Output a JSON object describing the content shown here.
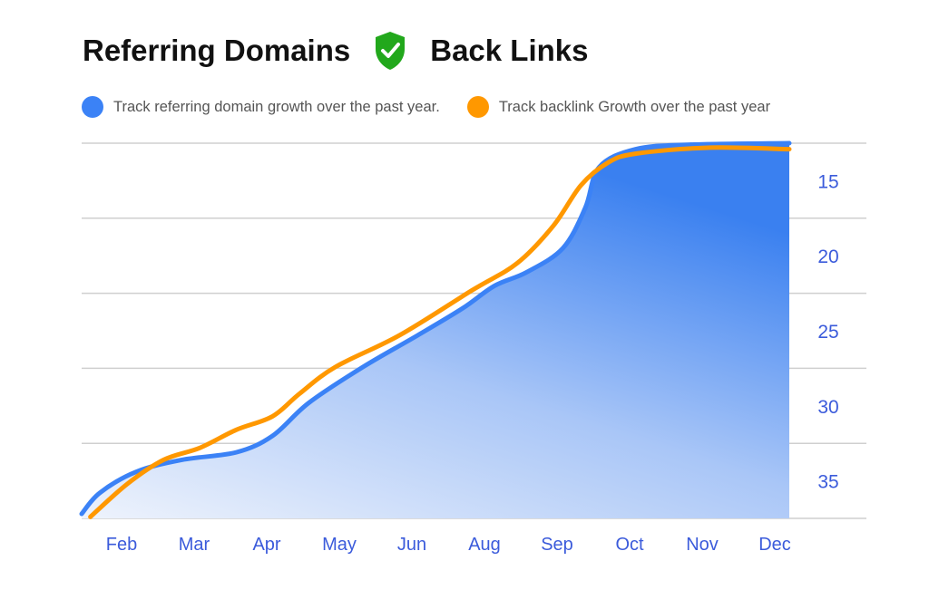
{
  "chart_data": {
    "type": "line",
    "title_left": "Referring Domains",
    "title_right": "Back Links",
    "title_icon": "shield-check-icon",
    "categories": [
      "Feb",
      "Mar",
      "Apr",
      "May",
      "Jun",
      "Aug",
      "Sep",
      "Oct",
      "Nov",
      "Dec"
    ],
    "y_ticks": [
      "15",
      "20",
      "25",
      "30",
      "35"
    ],
    "y_tick_values": [
      15,
      20,
      25,
      30,
      35
    ],
    "ylim": [
      37.5,
      12.5
    ],
    "xlim": [
      -0.55,
      9.2
    ],
    "grid": true,
    "legend_position": "top-left",
    "series": [
      {
        "name": "Track referring domain growth over the past year.",
        "color": "#3b82f6",
        "fill": true,
        "x": [
          -0.55,
          -0.3,
          0.2,
          0.83,
          1.58,
          2.08,
          2.58,
          3.33,
          4.08,
          4.7,
          5.14,
          5.58,
          6.08,
          6.39,
          6.58,
          7.08,
          7.83,
          9.2
        ],
        "y": [
          37.2,
          35.8,
          34.4,
          33.6,
          33.1,
          32.0,
          29.8,
          27.4,
          25.3,
          23.5,
          22.0,
          21.1,
          19.5,
          16.8,
          14.1,
          12.9,
          12.6,
          12.5
        ]
      },
      {
        "name": "Track backlink Growth over the past year",
        "color": "#ff9800",
        "fill": false,
        "x": [
          -0.43,
          0.08,
          0.58,
          1.08,
          1.58,
          2.08,
          2.45,
          2.95,
          3.83,
          4.83,
          5.45,
          5.95,
          6.33,
          6.7,
          7.08,
          8.08,
          9.2
        ],
        "y": [
          37.4,
          35.2,
          33.6,
          32.8,
          31.6,
          30.7,
          29.2,
          27.4,
          25.3,
          22.3,
          20.5,
          18.0,
          15.3,
          13.8,
          13.2,
          12.8,
          12.9
        ]
      }
    ]
  }
}
